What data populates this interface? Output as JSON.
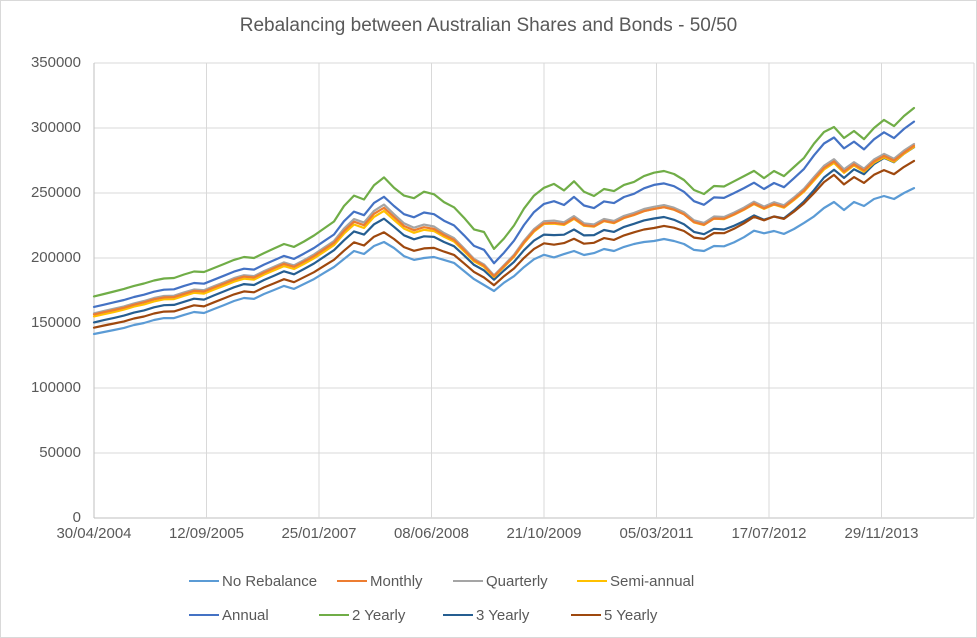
{
  "page": {
    "background": "#ffffff",
    "frame_border": "#d9d9d9",
    "text_color": "#595959",
    "gridline_color": "#d9d9d9",
    "axis_line_color": "#bfbfbf"
  },
  "chart_data": {
    "type": "line",
    "title": "Rebalancing between Australian Shares and Bonds - 50/50",
    "xlabel": "",
    "ylabel": "",
    "ylim": [
      0,
      350000
    ],
    "y_max": 350000,
    "y_ticks": [
      0,
      50000,
      100000,
      150000,
      200000,
      250000,
      300000,
      350000
    ],
    "x_tick_labels": [
      "30/04/2004",
      "12/09/2005",
      "25/01/2007",
      "08/06/2008",
      "21/10/2009",
      "05/03/2011",
      "17/07/2012",
      "29/11/2013"
    ],
    "grid": true,
    "legend_position": "bottom",
    "legend_rows": [
      [
        "No Rebalance",
        "Monthly",
        "Quarterly",
        "Semi-annual"
      ],
      [
        "Annual",
        "2 Yearly",
        "3 Yearly",
        "5 Yearly"
      ]
    ],
    "x_unit": "year (portfolio value sampled ~monthly, 30/04/2004 - 04/2014)",
    "x": [
      2004.33,
      2004.45,
      2004.57,
      2004.7,
      2004.82,
      2004.94,
      2005.06,
      2005.18,
      2005.3,
      2005.43,
      2005.55,
      2005.67,
      2005.79,
      2005.91,
      2006.03,
      2006.16,
      2006.28,
      2006.4,
      2006.52,
      2006.64,
      2006.76,
      2006.89,
      2007.01,
      2007.13,
      2007.25,
      2007.37,
      2007.49,
      2007.62,
      2007.74,
      2007.86,
      2007.98,
      2008.1,
      2008.22,
      2008.35,
      2008.47,
      2008.59,
      2008.71,
      2008.83,
      2008.95,
      2009.08,
      2009.2,
      2009.32,
      2009.44,
      2009.56,
      2009.68,
      2009.81,
      2009.93,
      2010.05,
      2010.17,
      2010.29,
      2010.41,
      2010.54,
      2010.66,
      2010.78,
      2010.9,
      2011.02,
      2011.14,
      2011.27,
      2011.39,
      2011.51,
      2011.63,
      2011.75,
      2011.87,
      2012.0,
      2012.12,
      2012.24,
      2012.36,
      2012.48,
      2012.6,
      2012.73,
      2012.85,
      2012.97,
      2013.09,
      2013.21,
      2013.33,
      2013.46,
      2013.58,
      2013.7,
      2013.82,
      2013.94,
      2014.06,
      2014.19,
      2014.31
    ],
    "series": [
      {
        "name": "No Rebalance",
        "color": "#5B9BD5",
        "values": [
          141500,
          143100,
          144600,
          146200,
          148500,
          150000,
          152300,
          153800,
          153800,
          156200,
          158500,
          157700,
          160800,
          163800,
          166900,
          169200,
          168500,
          172300,
          175400,
          178500,
          176200,
          180000,
          183800,
          188500,
          193100,
          199200,
          205400,
          203100,
          209200,
          212300,
          207700,
          201500,
          198500,
          200000,
          200800,
          198500,
          196200,
          190000,
          183800,
          179200,
          174600,
          181000,
          186000,
          193000,
          199000,
          202500,
          200500,
          203000,
          205400,
          202300,
          203800,
          206900,
          205400,
          208500,
          210800,
          212300,
          213100,
          214600,
          213100,
          210800,
          206200,
          205400,
          209200,
          209000,
          212000,
          216000,
          221000,
          219000,
          220800,
          218500,
          222300,
          227000,
          232000,
          238500,
          243100,
          236900,
          243100,
          240000,
          245400,
          247700,
          245400,
          250000,
          253800
        ]
      },
      {
        "name": "Monthly",
        "color": "#ED7D31",
        "values": [
          156600,
          158300,
          160000,
          161800,
          164100,
          165900,
          168200,
          169700,
          169900,
          172400,
          174700,
          174200,
          177300,
          180300,
          183400,
          185700,
          185000,
          188800,
          192200,
          195500,
          193200,
          197200,
          201500,
          206600,
          211700,
          220700,
          227900,
          225200,
          234000,
          238600,
          231500,
          224600,
          221300,
          223700,
          222300,
          217700,
          213900,
          206300,
          198400,
          194100,
          185900,
          193700,
          201500,
          212000,
          220900,
          226700,
          227100,
          226000,
          230600,
          225200,
          224400,
          228600,
          227100,
          230900,
          233200,
          236100,
          237800,
          239100,
          237200,
          233700,
          227600,
          225600,
          230400,
          230200,
          233500,
          237400,
          241900,
          238200,
          241500,
          239200,
          245200,
          251800,
          260600,
          269200,
          274300,
          266500,
          272100,
          267300,
          274200,
          278500,
          274900,
          281000,
          286400
        ]
      },
      {
        "name": "Quarterly",
        "color": "#A5A5A5",
        "values": [
          157500,
          159200,
          161000,
          162800,
          165100,
          166900,
          169200,
          170800,
          171000,
          173500,
          175800,
          175200,
          178300,
          181300,
          184500,
          186800,
          186100,
          189900,
          193300,
          196600,
          194300,
          198400,
          202800,
          207900,
          213100,
          222600,
          229900,
          227200,
          236200,
          241100,
          233700,
          226700,
          223300,
          225700,
          224200,
          219200,
          215300,
          207500,
          199400,
          195100,
          186600,
          194500,
          202500,
          213200,
          222200,
          228300,
          228800,
          227500,
          232200,
          226700,
          225800,
          230000,
          228500,
          232400,
          234700,
          237700,
          239400,
          240700,
          238700,
          235200,
          229000,
          227000,
          231900,
          231500,
          234900,
          238800,
          243300,
          239500,
          242900,
          240500,
          246600,
          253300,
          262200,
          270900,
          276000,
          268200,
          273700,
          268700,
          275800,
          280100,
          276400,
          282600,
          287700
        ]
      },
      {
        "name": "Semi-annual",
        "color": "#FFC000",
        "values": [
          155100,
          156800,
          158500,
          160300,
          162600,
          164300,
          166600,
          168200,
          168400,
          170900,
          173200,
          172600,
          175700,
          178700,
          181800,
          184100,
          183400,
          187200,
          190500,
          193800,
          191500,
          195500,
          199800,
          204800,
          209900,
          218800,
          225800,
          223100,
          231600,
          236200,
          229300,
          222600,
          219400,
          221700,
          220700,
          216300,
          212700,
          205200,
          197500,
          193200,
          185300,
          193100,
          200900,
          211400,
          220300,
          226200,
          226500,
          225500,
          230100,
          224800,
          224100,
          228300,
          226800,
          230700,
          233000,
          236000,
          237800,
          239100,
          237100,
          233600,
          227400,
          225400,
          230300,
          229900,
          233200,
          237100,
          241500,
          237800,
          241100,
          238700,
          244600,
          251000,
          259600,
          268100,
          273100,
          265500,
          271200,
          266400,
          273300,
          277500,
          274000,
          280200,
          285500
        ]
      },
      {
        "name": "Annual",
        "color": "#4472C4",
        "values": [
          162400,
          164100,
          165900,
          167700,
          170000,
          171800,
          174100,
          175600,
          175900,
          178500,
          180800,
          180200,
          183300,
          186400,
          189500,
          191800,
          191100,
          194900,
          198200,
          201600,
          199300,
          203400,
          207700,
          212900,
          218100,
          228300,
          235700,
          232900,
          242400,
          247100,
          240000,
          233700,
          231300,
          235000,
          233700,
          228700,
          225100,
          217500,
          209300,
          206300,
          196000,
          204100,
          213300,
          225400,
          235300,
          241600,
          243700,
          240800,
          247000,
          240400,
          238400,
          243500,
          242200,
          246900,
          249400,
          253600,
          256200,
          257400,
          255200,
          250900,
          243700,
          240900,
          246600,
          246200,
          249900,
          253800,
          257900,
          253100,
          257700,
          254500,
          261400,
          268500,
          279000,
          288100,
          292700,
          284300,
          289500,
          283500,
          291300,
          296700,
          292200,
          299300,
          304900
        ]
      },
      {
        "name": "2 Yearly",
        "color": "#70AD47",
        "values": [
          170500,
          172300,
          174200,
          176200,
          178500,
          180400,
          182700,
          184200,
          184600,
          187300,
          189600,
          189200,
          192300,
          195400,
          198500,
          200800,
          200000,
          203800,
          207300,
          210800,
          208500,
          212700,
          217300,
          222700,
          228100,
          240000,
          248000,
          245000,
          256000,
          262000,
          254000,
          248000,
          246000,
          251000,
          249000,
          243000,
          239000,
          231000,
          222000,
          220000,
          207000,
          215000,
          225000,
          238000,
          248000,
          254000,
          257000,
          252000,
          259000,
          251000,
          247700,
          253100,
          251500,
          256200,
          258500,
          263000,
          265600,
          266900,
          264600,
          260000,
          252300,
          249200,
          255400,
          255000,
          259000,
          263000,
          267000,
          261500,
          266900,
          263000,
          270000,
          277000,
          288000,
          296900,
          300800,
          292300,
          297700,
          291500,
          300000,
          306200,
          301500,
          309200,
          315400
        ]
      },
      {
        "name": "3 Yearly",
        "color": "#255E91",
        "values": [
          150500,
          152200,
          153900,
          155700,
          158000,
          159700,
          162100,
          163700,
          163900,
          166300,
          168700,
          168000,
          171200,
          174300,
          177500,
          179900,
          179200,
          183100,
          186400,
          189800,
          187500,
          191500,
          195800,
          200900,
          206000,
          213600,
          220500,
          218000,
          225900,
          230200,
          224000,
          217500,
          214400,
          216700,
          216200,
          212300,
          209100,
          202100,
          194700,
          190500,
          183300,
          190400,
          197000,
          206000,
          213400,
          218000,
          217600,
          217900,
          221900,
          217400,
          217600,
          221500,
          220100,
          223900,
          226300,
          228900,
          230400,
          231500,
          229400,
          226000,
          220100,
          218300,
          222500,
          221900,
          224800,
          228400,
          232800,
          229500,
          231900,
          230500,
          236600,
          243500,
          252200,
          261900,
          267900,
          261600,
          268200,
          264500,
          272200,
          277000,
          273700,
          280200,
          285200
        ]
      },
      {
        "name": "5 Yearly",
        "color": "#9E480E",
        "values": [
          146400,
          148100,
          149600,
          151200,
          153500,
          155000,
          157300,
          158800,
          158900,
          161300,
          163600,
          162800,
          165900,
          168900,
          172000,
          174300,
          173600,
          177400,
          180500,
          183700,
          181400,
          185200,
          189100,
          193900,
          198600,
          205600,
          212100,
          209600,
          216400,
          219800,
          214600,
          208400,
          205500,
          207400,
          207800,
          204900,
          202400,
          195900,
          189300,
          185000,
          179100,
          186000,
          191900,
          200100,
          207000,
          211300,
          210200,
          211500,
          214800,
          211000,
          211700,
          215300,
          213900,
          217400,
          219800,
          221900,
          223100,
          224700,
          223300,
          220800,
          215700,
          214700,
          219200,
          219100,
          222500,
          226700,
          231700,
          229000,
          231900,
          230100,
          235700,
          242000,
          249900,
          258400,
          263900,
          256600,
          262200,
          257800,
          264000,
          267600,
          264500,
          270100,
          274700
        ]
      }
    ]
  }
}
